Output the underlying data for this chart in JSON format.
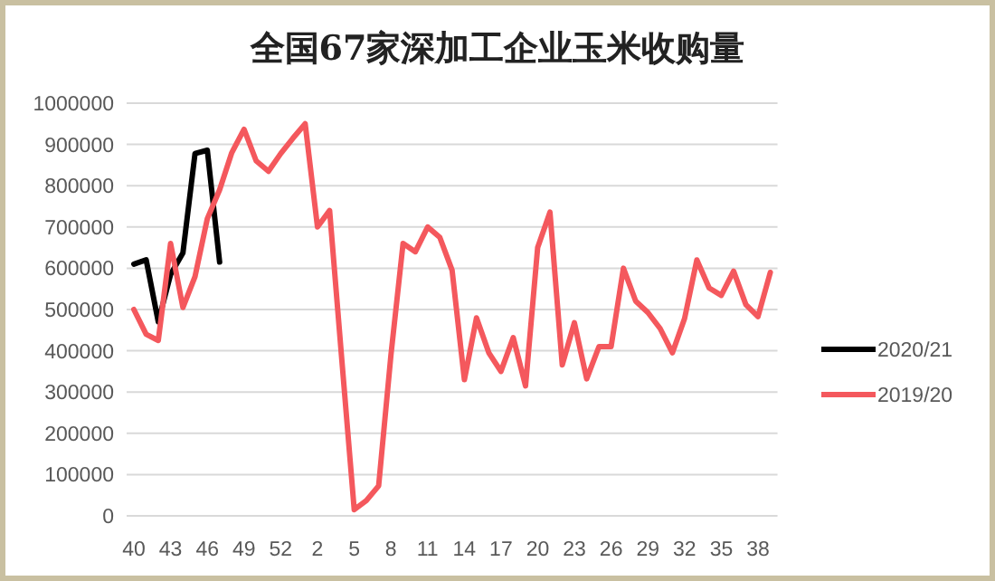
{
  "chart_data": {
    "type": "line",
    "title": "全国67家深加工企业玉米收购量",
    "categories": [
      "40",
      null,
      null,
      "43",
      null,
      null,
      "46",
      null,
      null,
      "49",
      null,
      null,
      "52",
      null,
      null,
      "2",
      null,
      null,
      "5",
      null,
      null,
      "8",
      null,
      null,
      "11",
      null,
      null,
      "14",
      null,
      null,
      "17",
      null,
      null,
      "20",
      null,
      null,
      "23",
      null,
      null,
      "26",
      null,
      null,
      "29",
      null,
      null,
      "32",
      null,
      null,
      "35",
      null,
      null,
      "38",
      null
    ],
    "series": [
      {
        "name": "2020/21",
        "color": "#000000",
        "values": [
          610000,
          620000,
          470000,
          585000,
          637000,
          878000,
          886000,
          615000,
          null,
          null,
          null,
          null,
          null,
          null,
          null,
          null,
          null,
          null,
          null,
          null,
          null,
          null,
          null,
          null,
          null,
          null,
          null,
          null,
          null,
          null,
          null,
          null,
          null,
          null,
          null,
          null,
          null,
          null,
          null,
          null,
          null,
          null,
          null,
          null,
          null,
          null,
          null,
          null,
          null,
          null,
          null,
          null,
          null
        ]
      },
      {
        "name": "2019/20",
        "color": "#f4585d",
        "values": [
          500000,
          440000,
          425000,
          660000,
          505000,
          580000,
          720000,
          790000,
          880000,
          937000,
          860000,
          835000,
          878000,
          915000,
          950000,
          700000,
          740000,
          375000,
          15000,
          37000,
          73000,
          390000,
          660000,
          640000,
          700000,
          675000,
          595000,
          330000,
          480000,
          395000,
          350000,
          432000,
          315000,
          650000,
          736000,
          366000,
          468000,
          332000,
          410000,
          410000,
          600000,
          520000,
          493000,
          454000,
          395000,
          478000,
          620000,
          552000,
          534000,
          593000,
          512000,
          483000,
          590000
        ]
      }
    ],
    "ylim": [
      0,
      1000000
    ],
    "yticks": [
      0,
      100000,
      200000,
      300000,
      400000,
      500000,
      600000,
      700000,
      800000,
      900000,
      1000000
    ],
    "grid": "y",
    "legend": "right",
    "marker": "none",
    "line_style": "solid"
  }
}
